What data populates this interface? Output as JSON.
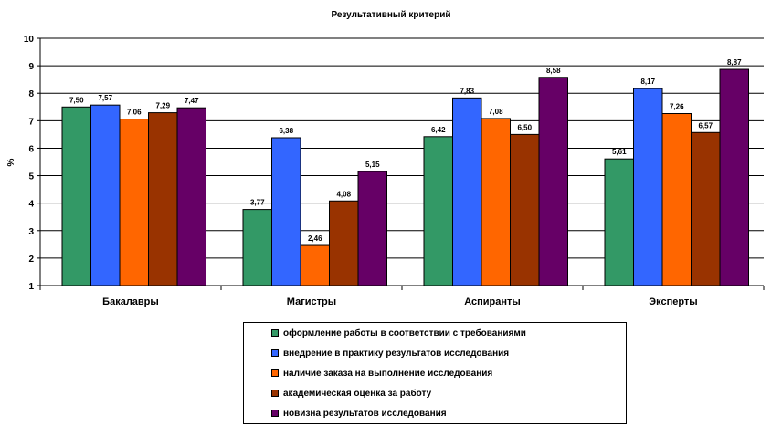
{
  "chart_data": {
    "type": "bar",
    "title": "Результативный критерий",
    "ylabel": "%",
    "xlabel": "",
    "ylim": [
      1,
      10
    ],
    "yticks": [
      1,
      2,
      3,
      4,
      5,
      6,
      7,
      8,
      9,
      10
    ],
    "grid": true,
    "legend_position": "bottom",
    "categories": [
      "Бакалавры",
      "Магистры",
      "Аспиранты",
      "Эксперты"
    ],
    "series": [
      {
        "name": "оформление работы в соответствии с требованиями",
        "color": "#339966",
        "values": [
          7.5,
          3.77,
          6.42,
          5.61
        ],
        "labels": [
          "7,50",
          "3,77",
          "6,42",
          "5,61"
        ]
      },
      {
        "name": "внедрение в практику результатов исследования",
        "color": "#3366FF",
        "values": [
          7.57,
          6.38,
          7.83,
          8.17
        ],
        "labels": [
          "7,57",
          "6,38",
          "7,83",
          "8,17"
        ]
      },
      {
        "name": "наличие заказа на выполнение исследования",
        "color": "#FF6600",
        "values": [
          7.06,
          2.46,
          7.08,
          7.26
        ],
        "labels": [
          "7,06",
          "2,46",
          "7,08",
          "7,26"
        ]
      },
      {
        "name": "академическая оценка за работу",
        "color": "#993300",
        "values": [
          7.29,
          4.08,
          6.5,
          6.57
        ],
        "labels": [
          "7,29",
          "4,08",
          "6,50",
          "6,57"
        ]
      },
      {
        "name": "новизна результатов исследования",
        "color": "#660066",
        "values": [
          7.47,
          5.15,
          8.58,
          8.87
        ],
        "labels": [
          "7,47",
          "5,15",
          "8,58",
          "8,87"
        ]
      }
    ]
  }
}
